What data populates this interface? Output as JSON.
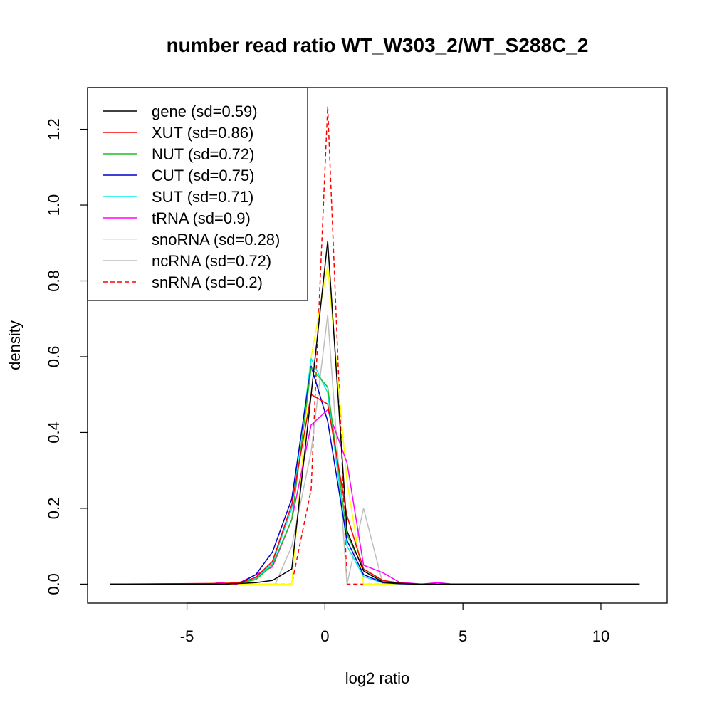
{
  "chart_data": {
    "type": "line",
    "title": "number read ratio WT_W303_2/WT_S288C_2",
    "xlabel": "log2 ratio",
    "ylabel": "density",
    "xlim": [
      -8.6,
      12.4
    ],
    "ylim": [
      -0.05,
      1.31
    ],
    "xticks": [
      -5,
      0,
      5,
      10
    ],
    "yticks": [
      0.0,
      0.2,
      0.4,
      0.6,
      0.8,
      1.0,
      1.2
    ],
    "xtick_labels": [
      "-5",
      "0",
      "5",
      "10"
    ],
    "ytick_labels": [
      "0.0",
      "0.2",
      "0.4",
      "0.6",
      "0.8",
      "1.0",
      "1.2"
    ],
    "legend_position": "top-left",
    "grid": false,
    "series": [
      {
        "name": "gene (sd=0.59)",
        "color": "#000000",
        "dash": false,
        "x": [
          -7.8,
          -3.6,
          -3.0,
          -2.5,
          -1.9,
          -1.2,
          -0.5,
          0.1,
          0.8,
          1.4,
          2.1,
          2.7,
          3.3,
          11.4
        ],
        "y": [
          0,
          0,
          0.002,
          0.004,
          0.01,
          0.04,
          0.5,
          0.905,
          0.14,
          0.035,
          0.005,
          0.002,
          0,
          0
        ]
      },
      {
        "name": "XUT (sd=0.86)",
        "color": "#ff0000",
        "dash": false,
        "x": [
          -7.8,
          -3.6,
          -3.0,
          -2.5,
          -1.9,
          -1.2,
          -0.5,
          0.1,
          0.8,
          1.4,
          2.1,
          2.7,
          3.3,
          11.4
        ],
        "y": [
          0,
          0.002,
          0.005,
          0.018,
          0.06,
          0.21,
          0.5,
          0.475,
          0.18,
          0.04,
          0.01,
          0.003,
          0,
          0
        ]
      },
      {
        "name": "NUT (sd=0.72)",
        "color": "#22bb22",
        "dash": false,
        "x": [
          -7.8,
          -3.6,
          -3.0,
          -2.5,
          -1.9,
          -1.2,
          -0.5,
          0.1,
          0.8,
          1.4,
          2.1,
          2.7,
          3.3,
          11.4
        ],
        "y": [
          0,
          0.001,
          0.004,
          0.012,
          0.05,
          0.17,
          0.57,
          0.52,
          0.13,
          0.04,
          0.008,
          0.002,
          0,
          0
        ]
      },
      {
        "name": "CUT (sd=0.75)",
        "color": "#0000cc",
        "dash": false,
        "x": [
          -7.8,
          -3.6,
          -3.0,
          -2.5,
          -1.9,
          -1.2,
          -0.5,
          0.1,
          0.8,
          1.4,
          2.1,
          2.7,
          3.3,
          11.4
        ],
        "y": [
          0,
          0.001,
          0.006,
          0.025,
          0.085,
          0.225,
          0.575,
          0.43,
          0.115,
          0.025,
          0.004,
          0.001,
          0,
          0
        ]
      },
      {
        "name": "SUT (sd=0.71)",
        "color": "#00eeee",
        "dash": false,
        "x": [
          -7.8,
          -3.6,
          -3.0,
          -2.5,
          -1.9,
          -1.2,
          -0.5,
          0.1,
          0.8,
          1.4,
          2.1,
          2.7,
          3.3,
          11.4
        ],
        "y": [
          0,
          0.001,
          0.004,
          0.015,
          0.055,
          0.2,
          0.595,
          0.505,
          0.1,
          0.02,
          0.003,
          0.001,
          0,
          0
        ]
      },
      {
        "name": "tRNA (sd=0.9)",
        "color": "#ff00ff",
        "dash": false,
        "x": [
          -7.8,
          -4.2,
          -3.8,
          -3.2,
          -2.5,
          -1.9,
          -1.2,
          -0.5,
          0.1,
          0.8,
          1.4,
          2.1,
          2.7,
          3.5,
          4.1,
          4.6,
          11.4
        ],
        "y": [
          0,
          0,
          0.004,
          0,
          0.025,
          0.045,
          0.17,
          0.42,
          0.46,
          0.32,
          0.05,
          0.03,
          0.005,
          0,
          0.004,
          0,
          0
        ]
      },
      {
        "name": "snoRNA (sd=0.28)",
        "color": "#ffff00",
        "dash": false,
        "x": [
          -7.8,
          -1.2,
          -0.5,
          0.1,
          0.8,
          1.4,
          11.4
        ],
        "y": [
          0,
          0,
          0.6,
          0.84,
          0.27,
          0,
          0
        ]
      },
      {
        "name": "ncRNA (sd=0.72)",
        "color": "#bebebe",
        "dash": false,
        "x": [
          -7.8,
          -1.8,
          -1.2,
          -0.5,
          0.1,
          0.8,
          1.4,
          2.1,
          2.7,
          11.4
        ],
        "y": [
          0,
          0,
          0.1,
          0.35,
          0.71,
          0,
          0.2,
          0,
          0,
          0
        ]
      },
      {
        "name": "snRNA (sd=0.2)",
        "color": "#ff0000",
        "dash": true,
        "x": [
          -7.8,
          -1.2,
          -0.5,
          0.1,
          0.8,
          11.4
        ],
        "y": [
          0,
          0,
          0.25,
          1.26,
          0,
          0
        ]
      }
    ]
  }
}
